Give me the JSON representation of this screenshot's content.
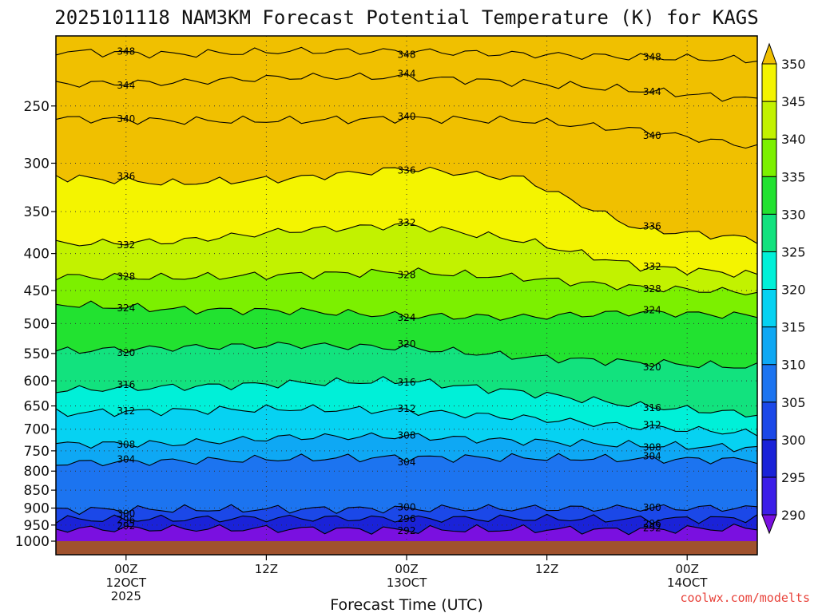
{
  "chart_data": {
    "type": "heatmap",
    "title": "2025101118 NAM3KM Forecast Potential Temperature (K) for KAGS",
    "xlabel": "Forecast Time (UTC)",
    "ylabel": "",
    "units": "K",
    "credit": "coolwx.com/modelts",
    "x_range_hours": [
      0,
      60
    ],
    "x_ticks": [
      {
        "hour": 6,
        "lines": [
          "00Z",
          "12OCT",
          "2025"
        ]
      },
      {
        "hour": 18,
        "lines": [
          "12Z"
        ]
      },
      {
        "hour": 30,
        "lines": [
          "00Z",
          "13OCT"
        ]
      },
      {
        "hour": 42,
        "lines": [
          "12Z"
        ]
      },
      {
        "hour": 54,
        "lines": [
          "00Z",
          "14OCT"
        ]
      }
    ],
    "y_range_hpa": [
      1000,
      200
    ],
    "y_ticks": [
      250,
      300,
      350,
      400,
      450,
      500,
      550,
      600,
      650,
      700,
      750,
      800,
      850,
      900,
      950,
      1000
    ],
    "colorbar": {
      "levels": [
        290,
        295,
        300,
        305,
        310,
        315,
        320,
        325,
        330,
        335,
        340,
        345,
        350
      ],
      "colors": [
        "#7a10e0",
        "#3c1ee8",
        "#1a22d8",
        "#1b48e8",
        "#1c74f0",
        "#0ea8f4",
        "#06d2f2",
        "#00f0d8",
        "#12e27e",
        "#22e230",
        "#7cf000",
        "#c2f200",
        "#f4f400",
        "#f0c000"
      ]
    },
    "contours": [
      {
        "label": "292",
        "values": [
          962,
          961,
          962,
          965,
          963,
          965,
          958
        ]
      },
      {
        "label": "296",
        "values": [
          933,
          932,
          929,
          931,
          930,
          933,
          929
        ]
      },
      {
        "label": "300",
        "values": [
          905,
          904,
          903,
          902,
          901,
          900,
          900
        ]
      },
      {
        "label": "304",
        "values": [
          780,
          775,
          769,
          766,
          767,
          770,
          772
        ]
      },
      {
        "label": "308",
        "values": [
          734,
          733,
          718,
          716,
          727,
          737,
          743
        ]
      },
      {
        "label": "312",
        "values": [
          665,
          660,
          656,
          660,
          675,
          695,
          710
        ]
      },
      {
        "label": "316",
        "values": [
          618,
          612,
          605,
          600,
          622,
          650,
          668
        ]
      },
      {
        "label": "320",
        "values": [
          546,
          540,
          535,
          540,
          556,
          566,
          575
        ]
      },
      {
        "label": "324",
        "values": [
          470,
          478,
          480,
          488,
          490,
          482,
          488
        ]
      },
      {
        "label": "328",
        "values": [
          430,
          432,
          428,
          424,
          432,
          446,
          453
        ]
      },
      {
        "label": "332",
        "values": [
          388,
          385,
          372,
          365,
          384,
          417,
          428
        ]
      },
      {
        "label": "336",
        "values": [
          313,
          320,
          315,
          305,
          315,
          370,
          382
        ]
      },
      {
        "label": "340",
        "values": [
          260,
          262,
          262,
          260,
          262,
          270,
          285
        ]
      },
      {
        "label": "344",
        "values": [
          233,
          232,
          228,
          228,
          232,
          238,
          245
        ]
      },
      {
        "label": "348",
        "values": [
          210,
          212,
          210,
          210,
          212,
          214,
          216
        ]
      }
    ],
    "contour_x_hours": [
      0,
      10,
      20,
      30,
      40,
      50,
      60
    ]
  }
}
